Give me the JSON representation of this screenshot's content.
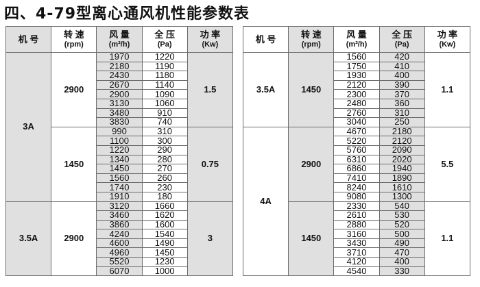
{
  "title": "四、4-79型离心通风机性能参数表",
  "headers": [
    {
      "main": "机 号",
      "sub": ""
    },
    {
      "main": "转  速",
      "sub": "(rpm)"
    },
    {
      "main": "风  量",
      "sub": "(m³/h)"
    },
    {
      "main": "全  压",
      "sub": "(Pa)"
    },
    {
      "main": "功 率",
      "sub": "(Kw)"
    }
  ],
  "tables": [
    {
      "models": [
        {
          "model": "3A",
          "groups": [
            {
              "rpm": "2900",
              "power": "1.5",
              "flow": [
                "1970",
                "2180",
                "2430",
                "2670",
                "2900",
                "3130",
                "3480",
                "3830"
              ],
              "pressure": [
                "1220",
                "1190",
                "1180",
                "1140",
                "1090",
                "1060",
                "910",
                "740"
              ]
            },
            {
              "rpm": "1450",
              "power": "0.75",
              "flow": [
                "990",
                "1100",
                "1220",
                "1340",
                "1450",
                "1560",
                "1740",
                "1910"
              ],
              "pressure": [
                "310",
                "300",
                "290",
                "280",
                "270",
                "260",
                "230",
                "180"
              ]
            }
          ]
        },
        {
          "model": "3.5A",
          "groups": [
            {
              "rpm": "2900",
              "power": "3",
              "flow": [
                "3120",
                "3460",
                "3860",
                "4240",
                "4600",
                "4960",
                "5520",
                "6070"
              ],
              "pressure": [
                "1660",
                "1620",
                "1600",
                "1540",
                "1490",
                "1450",
                "1230",
                "1000"
              ]
            }
          ]
        }
      ]
    },
    {
      "models": [
        {
          "model": "3.5A",
          "groups": [
            {
              "rpm": "1450",
              "power": "1.1",
              "flow": [
                "1560",
                "1750",
                "1930",
                "2120",
                "2300",
                "2480",
                "2760",
                "3040"
              ],
              "pressure": [
                "420",
                "410",
                "400",
                "390",
                "370",
                "360",
                "310",
                "250"
              ]
            }
          ]
        },
        {
          "model": "4A",
          "groups": [
            {
              "rpm": "2900",
              "power": "5.5",
              "flow": [
                "4670",
                "5220",
                "5760",
                "6310",
                "6860",
                "7410",
                "8240",
                "9080"
              ],
              "pressure": [
                "2180",
                "2120",
                "2090",
                "2020",
                "1940",
                "1890",
                "1610",
                "1300"
              ]
            },
            {
              "rpm": "1450",
              "power": "1.1",
              "flow": [
                "2330",
                "2610",
                "2880",
                "3160",
                "3430",
                "3710",
                "4120",
                "4540"
              ],
              "pressure": [
                "540",
                "530",
                "520",
                "500",
                "490",
                "470",
                "400",
                "330"
              ]
            }
          ]
        }
      ]
    }
  ]
}
